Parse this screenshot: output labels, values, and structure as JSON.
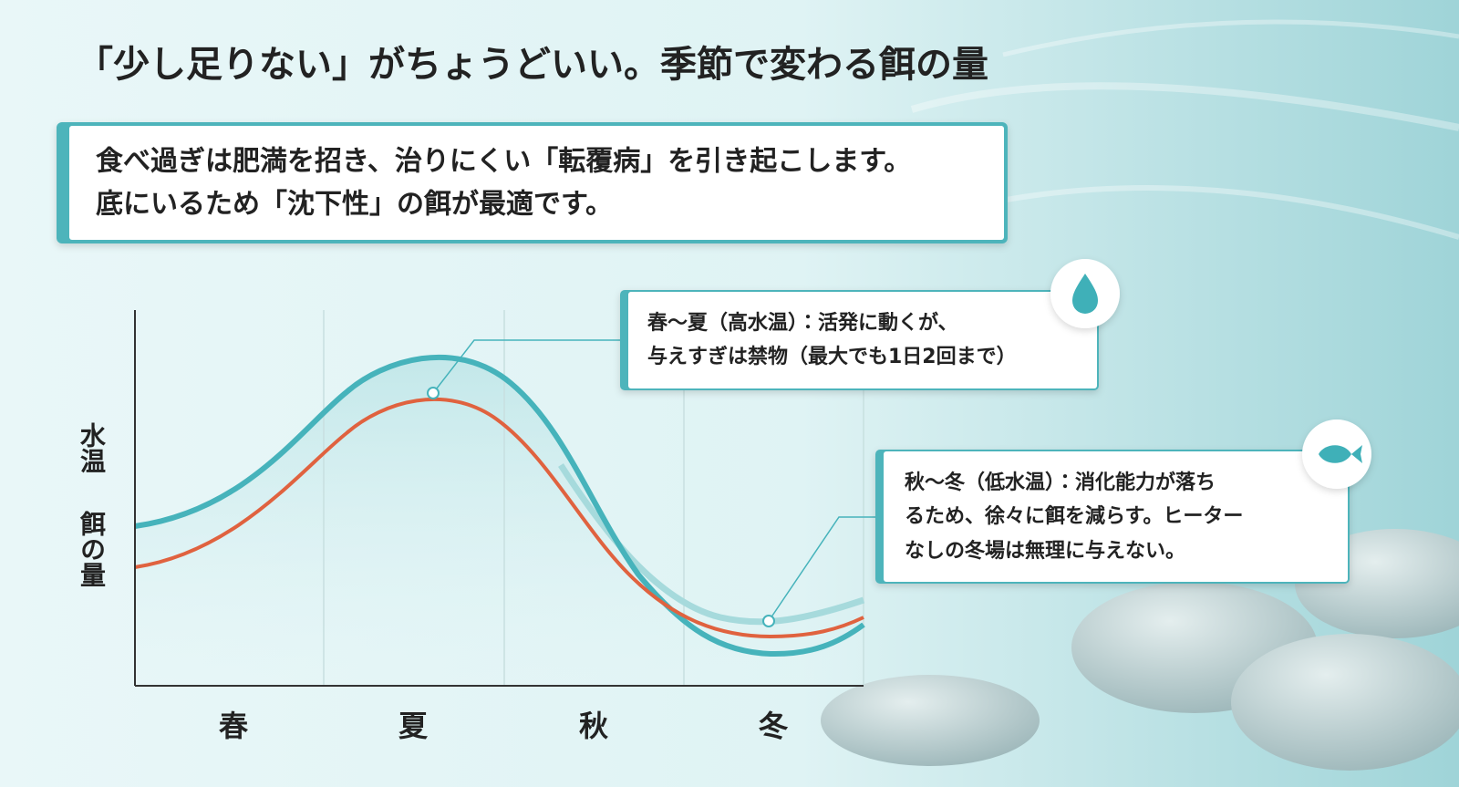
{
  "title": "「少し足りない」がちょうどいい。季節で変わる餌の量",
  "note": {
    "lines": [
      "食べ過ぎは肥満を招き、治りにくい「転覆病」を引き起こします。",
      "底にいるため「沈下性」の餌が最適です。"
    ]
  },
  "chart": {
    "y_label_lines": [
      "水温",
      "餌の量"
    ],
    "categories": [
      "春",
      "夏",
      "秋",
      "冬"
    ]
  },
  "callouts": [
    {
      "lines": [
        "春〜夏（高水温）：活発に動くが、",
        "与えすぎは禁物（最大でも1日2回まで）"
      ]
    },
    {
      "lines": [
        "秋〜冬（低水温）：消化能力が落ち",
        "るため、徐々に餌を減らす。ヒーター",
        "なしの冬場は無理に与えない。"
      ]
    }
  ]
}
